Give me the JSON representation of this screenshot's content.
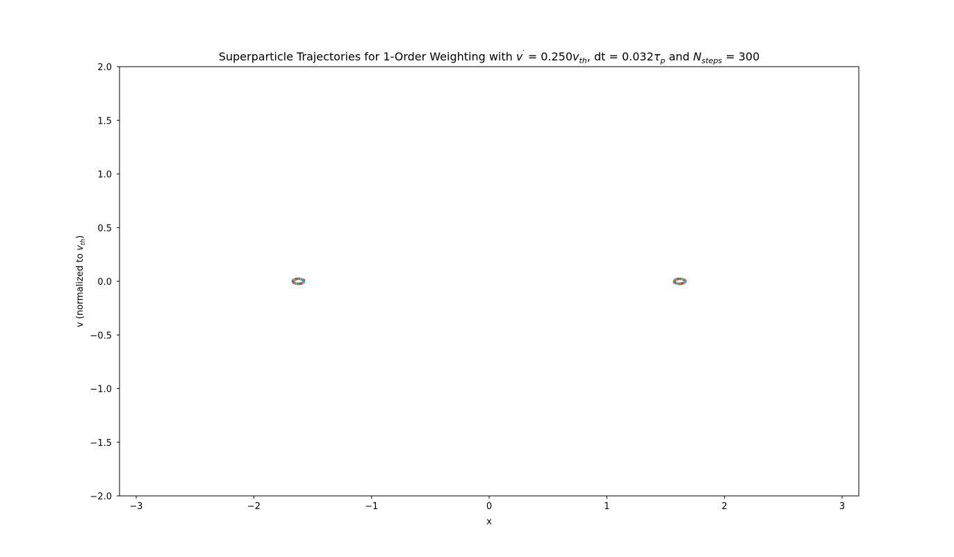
{
  "chart_data": {
    "type": "scatter",
    "title_parts": {
      "prefix": "Superparticle Trajectories for 1-Order Weighting with ",
      "v_symbol": "v",
      "prime": "′",
      "eq1": " = 0.250",
      "vth_symbol": "v",
      "vth_sub": "th",
      "mid": ", dt = 0.032",
      "tau_symbol": "τ",
      "tau_sub": "p",
      "and_text": " and ",
      "n_symbol": "N",
      "n_sub": "steps",
      "suffix": " = 300"
    },
    "xlabel": "x",
    "ylabel_parts": {
      "prefix": "v (normalized to ",
      "v_symbol": "v",
      "v_sub": "th",
      "suffix": ")"
    },
    "xlim": [
      -3.1416,
      3.1416
    ],
    "ylim": [
      -2.0,
      2.0
    ],
    "xticks": [
      -3,
      -2,
      -1,
      0,
      1,
      2,
      3
    ],
    "xtick_labels": [
      "−3",
      "−2",
      "−1",
      "0",
      "1",
      "2",
      "3"
    ],
    "yticks": [
      2.0,
      1.5,
      1.0,
      0.5,
      0.0,
      -0.5,
      -1.0,
      -1.5,
      -2.0
    ],
    "ytick_labels": [
      "2.0",
      "1.5",
      "1.0",
      "0.5",
      "0.0",
      "−0.5",
      "−1.0",
      "−1.5",
      "−2.0"
    ],
    "grid": false,
    "series": [
      {
        "center_x": -1.62,
        "center_v": 0.0,
        "radius_x": 0.05,
        "radius_v": 0.025
      },
      {
        "center_x": 1.62,
        "center_v": 0.0,
        "radius_x": 0.05,
        "radius_v": 0.025
      }
    ],
    "colors": [
      "#1f77b4",
      "#ff7f0e",
      "#2ca02c",
      "#d62728",
      "#9467bd",
      "#8c564b",
      "#e377c2",
      "#7f7f7f",
      "#bcbd22",
      "#17becf"
    ]
  }
}
